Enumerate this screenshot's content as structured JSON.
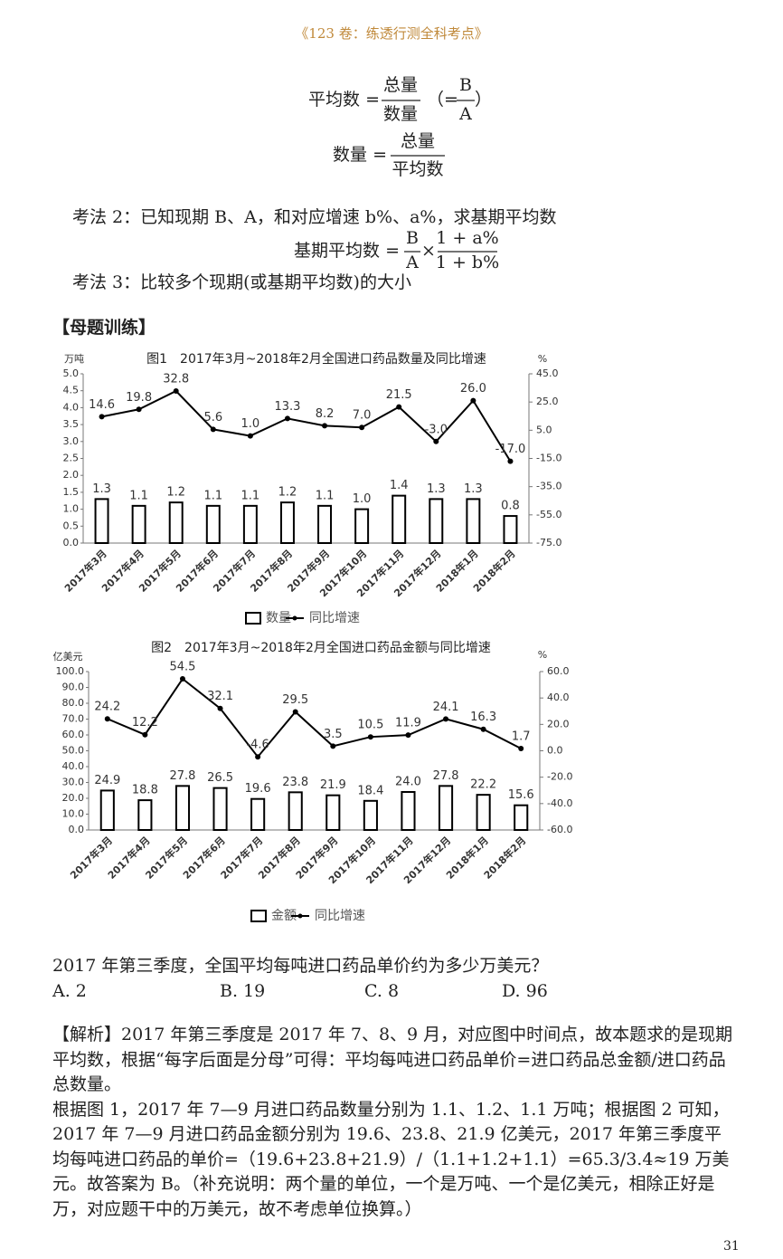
{
  "header": "《123 卷：练透行测全科考点》",
  "formula1": {
    "lhs": "平均数 =",
    "numerator": "总量",
    "denominator": "数量",
    "alt_prefix": "（=",
    "alt_numerator": "B",
    "alt_denominator": "A",
    "alt_suffix": "）"
  },
  "formula2": {
    "lhs": "数量 =",
    "numerator": "总量",
    "denominator": "平均数"
  },
  "method2": "考法 2：已知现期 B、A，和对应增速 b%、a%，求基期平均数",
  "formula3": {
    "lhs": "基期平均数 =",
    "numerator1": "B",
    "denominator1": "A",
    "operator": "×",
    "numerator2": "1 + a%",
    "denominator2": "1 + b%"
  },
  "method3": "考法 3：比较多个现期(或基期平均数)的大小",
  "section": "【母题训练】",
  "chart_data": [
    {
      "type": "bar",
      "title": "图1　2017年3月~2018年2月全国进口药品数量及同比增速",
      "y_unit": "万吨",
      "y2_unit": "%",
      "categories": [
        "2017年3月",
        "2017年4月",
        "2017年5月",
        "2017年6月",
        "2017年7月",
        "2017年8月",
        "2017年9月",
        "2017年10月",
        "2017年11月",
        "2017年12月",
        "2018年1月",
        "2018年2月"
      ],
      "series": [
        {
          "name": "数量",
          "type": "bar",
          "color": "#ffffff",
          "values": [
            1.3,
            1.1,
            1.2,
            1.1,
            1.1,
            1.2,
            1.1,
            1.0,
            1.4,
            1.3,
            1.3,
            0.8
          ],
          "value_labels": [
            "1.3",
            "1.1",
            "1.2",
            "1.1",
            "1.1",
            "1.2",
            "1.1",
            "1.0",
            "1.4",
            "1.3",
            "1.3",
            "0.8"
          ]
        },
        {
          "name": "同比增速",
          "type": "line",
          "axis": "y2",
          "color": "#000000",
          "values": [
            14.6,
            19.8,
            32.8,
            5.6,
            1.0,
            13.3,
            8.2,
            7.0,
            21.5,
            -3.0,
            26.0,
            -17.0
          ],
          "value_labels": [
            "14.6",
            "19.8",
            "32.8",
            "5.6",
            "1.0",
            "13.3",
            "8.2",
            "7.0",
            "21.5",
            "-3.0",
            "26.0",
            "-17.0"
          ]
        }
      ],
      "ylim": [
        0,
        5
      ],
      "yticks": [
        {
          "value": 0,
          "label": "0.0"
        },
        0.5,
        {
          "value": 1,
          "label": "1.0"
        },
        1.5,
        {
          "value": 2,
          "label": "2.0"
        },
        2.5,
        {
          "value": 3,
          "label": "3.0"
        },
        3.5,
        {
          "value": 4,
          "label": "4.0"
        },
        4.5,
        {
          "value": 5,
          "label": "5.0"
        }
      ],
      "y2lim": [
        -75,
        45
      ],
      "y2ticks": [
        {
          "value": 45,
          "label": "45.0"
        },
        {
          "value": 25,
          "label": "25.0"
        },
        {
          "value": 5,
          "label": "5.0"
        },
        {
          "value": -15,
          "label": "-15.0"
        },
        {
          "value": -35,
          "label": "-35.0"
        },
        {
          "value": -55,
          "label": "-55.0"
        },
        {
          "value": -75,
          "label": "-75.0"
        }
      ],
      "grid": false
    },
    {
      "type": "bar",
      "title": "图2　2017年3月~2018年2月全国进口药品金额与同比增速",
      "y_unit": "亿美元",
      "y2_unit": "%",
      "categories": [
        "2017年3月",
        "2017年4月",
        "2017年5月",
        "2017年6月",
        "2017年7月",
        "2017年8月",
        "2017年9月",
        "2017年10月",
        "2017年11月",
        "2017年12月",
        "2018年1月",
        "2018年2月"
      ],
      "series": [
        {
          "name": "金额",
          "type": "bar",
          "color": "#ffffff",
          "values": [
            24.9,
            18.8,
            27.8,
            26.5,
            19.6,
            23.8,
            21.9,
            18.4,
            24.0,
            27.8,
            22.2,
            15.6
          ],
          "value_labels": [
            "24.9",
            "18.8",
            "27.8",
            "26.5",
            "19.6",
            "23.8",
            "21.9",
            "18.4",
            "24.0",
            "27.8",
            "22.2",
            "15.6"
          ]
        },
        {
          "name": "同比增速",
          "type": "line",
          "axis": "y2",
          "color": "#000000",
          "values": [
            24.2,
            12.2,
            54.5,
            32.1,
            -4.6,
            29.5,
            3.5,
            10.5,
            11.9,
            24.1,
            16.3,
            1.7
          ]
        }
      ],
      "ylim": [
        0,
        100
      ],
      "yticks": [
        {
          "value": 0,
          "label": "0.0"
        },
        {
          "value": 10,
          "label": "10.0"
        },
        {
          "value": 20,
          "label": "20.0"
        },
        {
          "value": 30,
          "label": "30.0"
        },
        {
          "value": 40,
          "label": "40.0"
        },
        {
          "value": 50,
          "label": "50.0"
        },
        {
          "value": 60,
          "label": "60.0"
        },
        {
          "value": 70,
          "label": "70.0"
        },
        {
          "value": 80,
          "label": "80.0"
        },
        {
          "value": 90,
          "label": "90.0"
        },
        {
          "value": 100,
          "label": "100.0"
        }
      ],
      "y2lim": [
        -60,
        60
      ],
      "y2ticks": [
        {
          "value": 60,
          "label": "60.0"
        },
        {
          "value": 40,
          "label": "40.0"
        },
        {
          "value": 20,
          "label": "20.0"
        },
        {
          "value": 0,
          "label": "0.0"
        },
        {
          "value": -20,
          "label": "-20.0"
        },
        {
          "value": -40,
          "label": "-40.0"
        },
        {
          "value": -60,
          "label": "-60.0"
        }
      ],
      "grid": false
    }
  ],
  "question": {
    "text": "2017 年第三季度，全国平均每吨进口药品单价约为多少万美元？",
    "options": [
      "A. 2",
      "B. 19",
      "C. 8",
      "D. 96"
    ]
  },
  "analysis": [
    "【解析】2017 年第三季度是 2017 年 7、8、9 月，对应图中时间点，故本题求的是现期平均数，根据“每字后面是分母”可得：平均每吨进口药品单价=进口药品总金额/进口药品总数量。",
    "根据图 1，2017 年 7—9 月进口药品数量分别为 1.1、1.2、1.1 万吨；根据图 2 可知，2017 年 7—9 月进口药品金额分别为 19.6、23.8、21.9 亿美元，2017 年第三季度平均每吨进口药品的单价=（19.6+23.8+21.9）/（1.1+1.2+1.1）=65.3/3.4≈19 万美元。故答案为 B。（补充说明：两个量的单位，一个是万吨、一个是亿美元，相除正好是万，对应题干中的万美元，故不考虑单位换算。）"
  ],
  "page_number": "31"
}
